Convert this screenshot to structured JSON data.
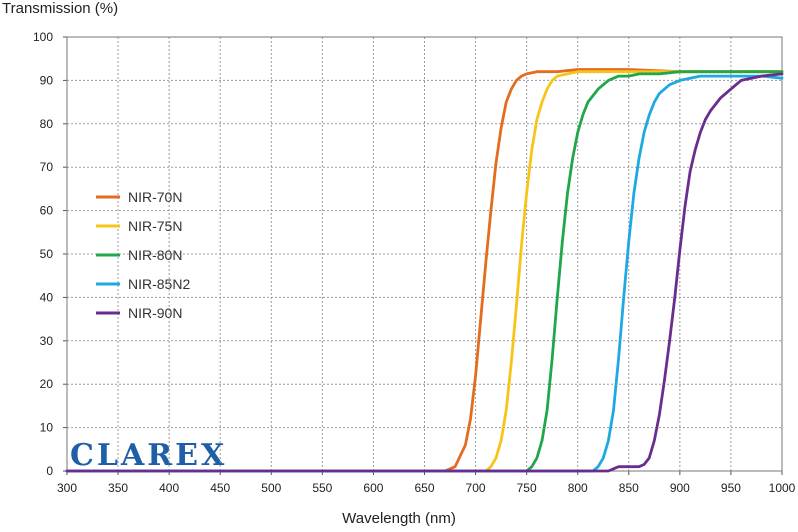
{
  "chart_data": {
    "type": "line",
    "title": "",
    "ylabel": "Transmission (%)",
    "xlabel": "Wavelength (nm)",
    "xlim": [
      300,
      1000
    ],
    "ylim": [
      0,
      100
    ],
    "xticks": [
      300,
      350,
      400,
      450,
      500,
      550,
      600,
      650,
      700,
      750,
      800,
      850,
      900,
      950,
      1000
    ],
    "yticks": [
      0,
      10,
      20,
      30,
      40,
      50,
      60,
      70,
      80,
      90,
      100
    ],
    "grid": true,
    "legend_position": "left",
    "series": [
      {
        "name": "NIR-70N",
        "color": "#e36c1e",
        "x": [
          300,
          670,
          680,
          690,
          695,
          700,
          705,
          710,
          715,
          720,
          725,
          730,
          735,
          740,
          745,
          750,
          760,
          770,
          780,
          800,
          850,
          900,
          950,
          1000
        ],
        "y": [
          0,
          0,
          1,
          6,
          12,
          22,
          35,
          48,
          60,
          71,
          79,
          85,
          88,
          90,
          91,
          91.5,
          92,
          92,
          92,
          92.5,
          92.5,
          92,
          92,
          92
        ]
      },
      {
        "name": "NIR-75N",
        "color": "#f7c41a",
        "x": [
          300,
          710,
          715,
          720,
          725,
          730,
          735,
          740,
          745,
          750,
          755,
          760,
          765,
          770,
          775,
          780,
          790,
          800,
          820,
          850,
          900,
          950,
          1000
        ],
        "y": [
          0,
          0,
          1,
          3,
          7,
          14,
          25,
          38,
          52,
          64,
          74,
          81,
          85,
          88,
          90,
          91,
          91.5,
          92,
          92,
          92,
          92,
          92,
          92
        ]
      },
      {
        "name": "NIR-80N",
        "color": "#1fa74a",
        "x": [
          300,
          750,
          755,
          760,
          765,
          770,
          775,
          780,
          785,
          790,
          795,
          800,
          805,
          810,
          820,
          830,
          840,
          850,
          860,
          880,
          900,
          950,
          1000
        ],
        "y": [
          0,
          0,
          1,
          3,
          7,
          14,
          26,
          40,
          53,
          64,
          72,
          78,
          82,
          85,
          88,
          90,
          91,
          91,
          91.5,
          91.5,
          92,
          92,
          92
        ]
      },
      {
        "name": "NIR-85N2",
        "color": "#1ea9e1",
        "x": [
          300,
          815,
          820,
          825,
          830,
          835,
          840,
          845,
          850,
          855,
          860,
          865,
          870,
          875,
          880,
          890,
          900,
          910,
          920,
          940,
          960,
          980,
          1000
        ],
        "y": [
          0,
          0,
          1,
          3,
          7,
          14,
          26,
          40,
          53,
          64,
          72,
          78,
          82,
          85,
          87,
          89,
          90,
          90.5,
          91,
          91,
          91,
          91,
          90.5
        ]
      },
      {
        "name": "NIR-90N",
        "color": "#6a2d8f",
        "x": [
          300,
          830,
          835,
          840,
          850,
          860,
          865,
          870,
          875,
          880,
          885,
          890,
          895,
          900,
          905,
          910,
          915,
          920,
          925,
          930,
          940,
          950,
          960,
          970,
          980,
          1000
        ],
        "y": [
          0,
          0,
          0.5,
          1,
          1,
          1,
          1.5,
          3,
          7,
          13,
          21,
          30,
          40,
          51,
          61,
          69,
          74,
          78,
          81,
          83,
          86,
          88,
          90,
          90.5,
          91,
          91.5
        ]
      }
    ]
  },
  "watermark": "CLAREX"
}
